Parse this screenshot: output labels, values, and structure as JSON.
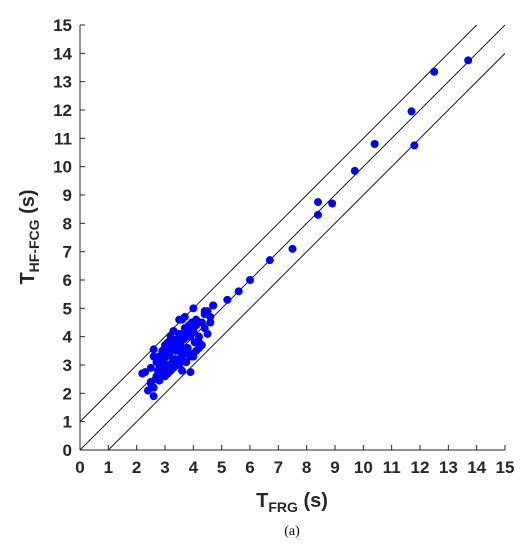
{
  "chart_data": {
    "type": "scatter",
    "title": "",
    "caption": "(a)",
    "xlabel": {
      "main": "T",
      "sub": "FRG",
      "unit": " (s)"
    },
    "ylabel": {
      "main": "T",
      "sub": "HF-FCG",
      "unit": " (s)"
    },
    "xlim": [
      0,
      15
    ],
    "ylim": [
      0,
      15
    ],
    "xticks": [
      0,
      1,
      2,
      3,
      4,
      5,
      6,
      7,
      8,
      9,
      10,
      11,
      12,
      13,
      14,
      15
    ],
    "yticks": [
      0,
      1,
      2,
      3,
      4,
      5,
      6,
      7,
      8,
      9,
      10,
      11,
      12,
      13,
      14,
      15
    ],
    "grid": false,
    "legend": "none",
    "colors": {
      "points": "#0000ff",
      "lines": "#000000",
      "axes": "#262626"
    },
    "reference_lines": [
      {
        "name": "y = x",
        "offset": 0
      },
      {
        "name": "y = x + 1",
        "offset": 1
      },
      {
        "name": "y = x - 1",
        "offset": -1
      }
    ],
    "series": [
      {
        "x": [
          2.2,
          2.3,
          2.4,
          2.5,
          2.5,
          2.6,
          2.6,
          2.7,
          2.7,
          2.75,
          2.8,
          2.8,
          2.85,
          2.9,
          2.9,
          2.95,
          3.0,
          3.0,
          3.05,
          3.1,
          3.1,
          3.15,
          3.2,
          3.2,
          3.25,
          3.3,
          3.3,
          3.35,
          3.4,
          3.4,
          3.45,
          3.5,
          3.5,
          3.55,
          3.6,
          3.6,
          3.65,
          3.7,
          3.7,
          3.75,
          3.8,
          3.8,
          3.85,
          3.9,
          3.9,
          3.95,
          4.0,
          4.0,
          4.05,
          4.1,
          4.1,
          4.2,
          4.2,
          4.3,
          4.3,
          4.4,
          4.4,
          4.5,
          4.6,
          4.7,
          2.6,
          2.7,
          2.8,
          2.9,
          3.0,
          3.1,
          3.2,
          3.3,
          3.4,
          3.5,
          3.6,
          3.7,
          3.8,
          3.9,
          4.0,
          3.0,
          3.2,
          3.4,
          3.6,
          3.8,
          2.5,
          2.8,
          3.1,
          3.3,
          3.6,
          3.9,
          4.2,
          4.5,
          2.9,
          3.5,
          3.7,
          4.1,
          4.4,
          4.7,
          4.0,
          3.4,
          2.6,
          3.9,
          4.6,
          3.3,
          5.2,
          5.6,
          6.0,
          6.7,
          7.5,
          8.4,
          8.4,
          8.9,
          9.7,
          10.4,
          11.7,
          11.8,
          12.5,
          13.7
        ],
        "y": [
          2.7,
          2.75,
          2.1,
          2.4,
          2.9,
          1.9,
          3.55,
          2.5,
          3.1,
          2.8,
          2.6,
          3.3,
          2.95,
          2.7,
          3.5,
          3.2,
          2.9,
          3.7,
          3.3,
          3.0,
          3.8,
          3.4,
          2.9,
          4.0,
          3.5,
          3.1,
          4.2,
          3.6,
          3.2,
          3.9,
          3.5,
          3.0,
          4.1,
          3.7,
          3.3,
          4.6,
          3.9,
          3.5,
          4.3,
          3.1,
          4.0,
          3.6,
          4.4,
          3.4,
          4.0,
          4.5,
          3.3,
          4.2,
          3.8,
          3.5,
          4.6,
          4.0,
          3.6,
          4.5,
          3.7,
          4.8,
          4.3,
          4.9,
          4.5,
          5.1,
          2.2,
          2.6,
          3.0,
          3.1,
          3.4,
          3.5,
          3.6,
          3.8,
          3.7,
          3.9,
          4.0,
          4.1,
          4.2,
          4.3,
          4.4,
          2.6,
          2.8,
          3.0,
          3.2,
          3.4,
          2.35,
          2.45,
          2.7,
          3.2,
          2.8,
          2.75,
          3.8,
          4.1,
          3.3,
          4.6,
          4.7,
          4.4,
          4.9,
          5.1,
          5.0,
          3.2,
          3.3,
          3.3,
          4.7,
          2.9,
          5.3,
          5.6,
          6.0,
          6.7,
          7.1,
          8.3,
          8.75,
          8.7,
          9.85,
          10.8,
          11.95,
          10.75,
          13.35,
          13.75
        ]
      }
    ]
  }
}
